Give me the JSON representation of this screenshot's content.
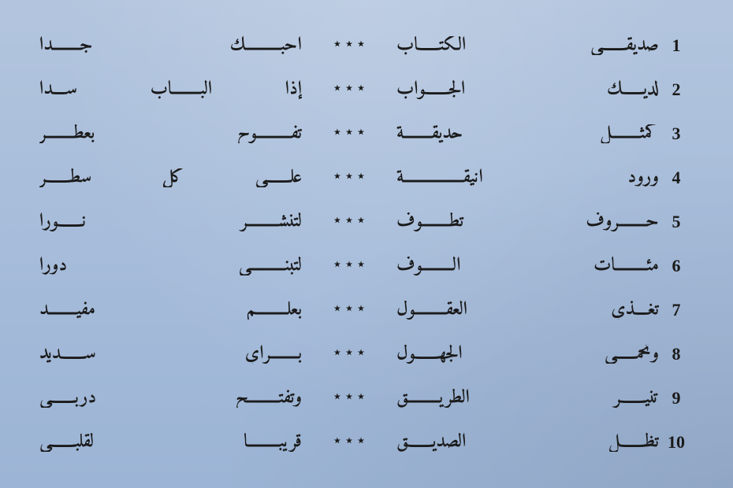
{
  "poem": {
    "separator": "٭ ٭ ٭",
    "background_gradient": [
      "#b3c5de",
      "#a6bcda",
      "#9cb4d5"
    ],
    "text_color": "#1a1a1a",
    "font_size": 24,
    "verses": [
      {
        "num": "1",
        "right": "صَديقـــــــي الكِتــــــابُ",
        "left": "أُحِبُّــــــــــكَ جِــــــــدًّا"
      },
      {
        "num": "2",
        "right": "لَدَيْــــــكَ الجَـــــــوابُ",
        "left": "إذا البــــــــابُ سُــــدَّا"
      },
      {
        "num": "3",
        "right": "كَمِثْــــــــلِ حَديقَــــــــةٍ",
        "left": "تَفــــــــــوحُ بِعِطْــــــــرِ"
      },
      {
        "num": "4",
        "right": "وُرودٌ أَنيقَـــــــــــــــــةٌ",
        "left": "عَلـــــــى كُلِّ سَطْـــــــرِ"
      },
      {
        "num": "5",
        "right": "حُــــــــروفٌ تَطــــــــوفُ",
        "left": "لِتَنْشُـــــــــرَ نـــــــورا"
      },
      {
        "num": "6",
        "right": "مِئـــــــــاتٌ أُلـــــــــوفُ",
        "left": "لِتَبْنــــــــــي دورا"
      },
      {
        "num": "7",
        "right": "تُغَــــذّي العُقـــــــــولَ",
        "left": "بِعِلْـــــــــمٍ مُفيــــــــدِ"
      },
      {
        "num": "8",
        "right": "وَتَحمــــــي الجَهـــــــولَ",
        "left": "بِــــــــرَأْيٍ سَـــــــديدِ"
      },
      {
        "num": "9",
        "right": "تُنيـــــــرُ الطَّريـــــــــقَ",
        "left": "وَتَفْتَـــــــــحُ دَرْبـــــــي"
      },
      {
        "num": "10",
        "right": "تَظَـــــــلُّ الصَّديـــــــقَ",
        "left": "قَريبًـــــــــا لِقَلْبـــــــي"
      }
    ]
  }
}
